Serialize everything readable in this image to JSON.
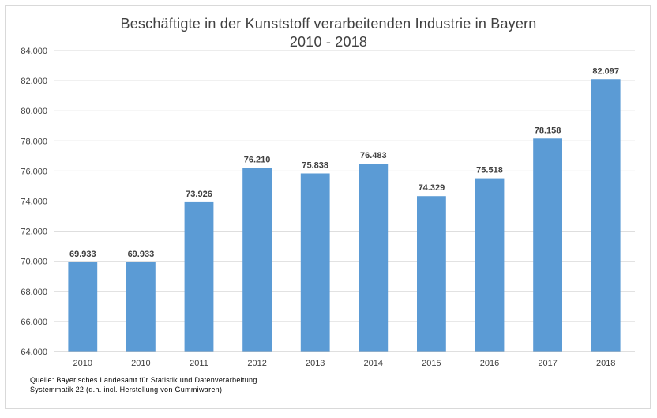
{
  "chart_data": {
    "type": "bar",
    "title": "Beschäftigte in der Kunststoff verarbeitenden Industrie in Bayern",
    "subtitle": "2010 - 2018",
    "categories": [
      "2010",
      "2010",
      "2011",
      "2012",
      "2013",
      "2014",
      "2015",
      "2016",
      "2017",
      "2018"
    ],
    "values": [
      69933,
      69933,
      73926,
      76210,
      75838,
      76483,
      74329,
      75518,
      78158,
      82097
    ],
    "data_labels": [
      "69.933",
      "69.933",
      "73.926",
      "76.210",
      "75.838",
      "76.483",
      "74.329",
      "75.518",
      "78.158",
      "82.097"
    ],
    "ylim": [
      64000,
      84000
    ],
    "y_ticks": [
      64000,
      66000,
      68000,
      70000,
      72000,
      74000,
      76000,
      78000,
      80000,
      82000,
      84000
    ],
    "y_tick_labels": [
      "64.000",
      "66.000",
      "68.000",
      "70.000",
      "72.000",
      "74.000",
      "76.000",
      "78.000",
      "80.000",
      "82.000",
      "84.000"
    ],
    "xlabel": "",
    "ylabel": "",
    "grid": true,
    "legend": "none",
    "bar_color": "#5b9bd5",
    "grid_color": "#d9d9d9"
  },
  "footnote": {
    "source": "Quelle:  Bayerisches Landesamt für Statistik und Datenverarbeitung",
    "system": "Systemmatik 22 (d.h. incl. Herstellung von Gummiwaren)"
  }
}
